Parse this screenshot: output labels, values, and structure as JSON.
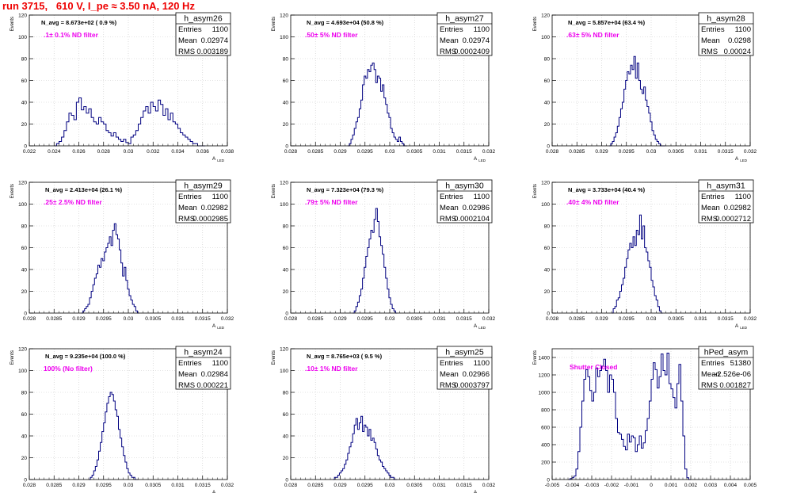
{
  "page_title": "run 3715,   610 V, I_pe ≈ 3.50 nA, 120 Hz",
  "colors": {
    "title": "#ee0000",
    "histogram_line": "#000080",
    "annotation": "#ee00ee",
    "grid": "#c8c8c8",
    "frame": "#000000"
  },
  "stats_labels": {
    "entries": "Entries",
    "mean": "Mean",
    "rms": "RMS"
  },
  "chart_data": [
    {
      "type": "histogram",
      "name": "h_asym26",
      "navg_text": "N_avg = 8.673e+02 ( 0.9 %)",
      "filter_text": ".1± 0.1% ND filter",
      "stats": {
        "entries": "1100",
        "mean": "0.02974",
        "rms": "0.003189"
      },
      "xlim": [
        0.022,
        0.038
      ],
      "ylim": [
        0,
        120
      ],
      "x_ticks": [
        0.022,
        0.024,
        0.026,
        0.028,
        0.03,
        0.032,
        0.034,
        0.036,
        0.038
      ],
      "x_tick_labels": [
        "0.022",
        "0.024",
        "0.026",
        "0.028",
        "0.03",
        "0.032",
        "0.034",
        "0.036",
        "0.038"
      ],
      "y_ticks": [
        0,
        20,
        40,
        60,
        80,
        100,
        120
      ],
      "ylabel": "Events",
      "xlabel": "A LED",
      "grid": true,
      "bins": {
        "x0": 0.024,
        "width": 0.0002,
        "counts": [
          0,
          2,
          4,
          8,
          14,
          22,
          30,
          28,
          24,
          40,
          44,
          33,
          36,
          30,
          34,
          26,
          22,
          20,
          26,
          22,
          20,
          14,
          12,
          9,
          12,
          8,
          6,
          4,
          6,
          3,
          2,
          8,
          10,
          14,
          20,
          26,
          32,
          36,
          30,
          40,
          36,
          32,
          42,
          38,
          28,
          34,
          24,
          30,
          22,
          20,
          16,
          12,
          10,
          8,
          6,
          4,
          2,
          2,
          0,
          0,
          0
        ]
      }
    },
    {
      "type": "histogram",
      "name": "h_asym27",
      "navg_text": "N_avg = 4.693e+04 (50.8 %)",
      "filter_text": ".50± 5% ND filter",
      "stats": {
        "entries": "1100",
        "mean": "0.02974",
        "rms": "0.0002409"
      },
      "xlim": [
        0.028,
        0.032
      ],
      "ylim": [
        0,
        120
      ],
      "x_ticks": [
        0.028,
        0.0285,
        0.029,
        0.0295,
        0.03,
        0.0305,
        0.031,
        0.0315,
        0.032
      ],
      "x_tick_labels": [
        "0.028",
        "0.0285",
        "0.029",
        "0.0295",
        "0.03",
        "0.0305",
        "0.031",
        "0.0315",
        "0.032"
      ],
      "y_ticks": [
        0,
        20,
        40,
        60,
        80,
        100,
        120
      ],
      "ylabel": "Events",
      "xlabel": "A LED",
      "grid": true,
      "bins": {
        "x0": 0.02915,
        "width": 3.333e-05,
        "counts": [
          0,
          2,
          6,
          10,
          16,
          22,
          26,
          34,
          42,
          56,
          64,
          62,
          70,
          68,
          74,
          76,
          70,
          58,
          64,
          62,
          50,
          56,
          44,
          38,
          30,
          26,
          16,
          12,
          8,
          6,
          4,
          8,
          4,
          2,
          0,
          0
        ]
      }
    },
    {
      "type": "histogram",
      "name": "h_asym28",
      "navg_text": "N_avg = 5.857e+04 (63.4 %)",
      "filter_text": ".63± 5% ND filter",
      "stats": {
        "entries": "1100",
        "mean": "0.0298",
        "rms": "0.00024"
      },
      "xlim": [
        0.028,
        0.032
      ],
      "ylim": [
        0,
        120
      ],
      "x_ticks": [
        0.028,
        0.0285,
        0.029,
        0.0295,
        0.03,
        0.0305,
        0.031,
        0.0315,
        0.032
      ],
      "x_tick_labels": [
        "0.028",
        "0.0285",
        "0.029",
        "0.0295",
        "0.03",
        "0.0305",
        "0.031",
        "0.0315",
        "0.032"
      ],
      "y_ticks": [
        0,
        20,
        40,
        60,
        80,
        100,
        120
      ],
      "ylabel": "Events",
      "xlabel": "A LED",
      "grid": true,
      "bins": {
        "x0": 0.02915,
        "width": 3.333e-05,
        "counts": [
          0,
          2,
          4,
          8,
          12,
          18,
          26,
          34,
          40,
          52,
          60,
          68,
          66,
          74,
          70,
          82,
          62,
          76,
          60,
          52,
          48,
          54,
          42,
          36,
          30,
          22,
          14,
          10,
          6,
          4,
          2,
          0,
          0,
          0
        ]
      }
    },
    {
      "type": "histogram",
      "name": "h_asym29",
      "navg_text": "N_avg = 2.413e+04 (26.1 %)",
      "filter_text": ".25± 2.5% ND filter",
      "stats": {
        "entries": "1100",
        "mean": "0.02982",
        "rms": "0.0002985"
      },
      "xlim": [
        0.028,
        0.032
      ],
      "ylim": [
        0,
        120
      ],
      "x_ticks": [
        0.028,
        0.0285,
        0.029,
        0.0295,
        0.03,
        0.0305,
        0.031,
        0.0315,
        0.032
      ],
      "x_tick_labels": [
        "0.028",
        "0.0285",
        "0.029",
        "0.0295",
        "0.03",
        "0.0305",
        "0.031",
        "0.0315",
        "0.032"
      ],
      "y_ticks": [
        0,
        20,
        40,
        60,
        80,
        100,
        120
      ],
      "ylabel": "Events",
      "xlabel": "A LED",
      "grid": true,
      "bins": {
        "x0": 0.02905,
        "width": 3.333e-05,
        "counts": [
          0,
          2,
          4,
          6,
          8,
          14,
          20,
          26,
          32,
          36,
          44,
          42,
          50,
          48,
          56,
          60,
          64,
          70,
          62,
          76,
          82,
          72,
          68,
          58,
          46,
          34,
          42,
          30,
          22,
          16,
          12,
          8,
          6,
          2,
          0
        ]
      }
    },
    {
      "type": "histogram",
      "name": "h_asym30",
      "navg_text": "N_avg = 7.323e+04 (79.3 %)",
      "filter_text": ".79± 5% ND filter",
      "stats": {
        "entries": "1100",
        "mean": "0.02986",
        "rms": "0.0002104"
      },
      "xlim": [
        0.028,
        0.032
      ],
      "ylim": [
        0,
        120
      ],
      "x_ticks": [
        0.028,
        0.0285,
        0.029,
        0.0295,
        0.03,
        0.0305,
        0.031,
        0.0315,
        0.032
      ],
      "x_tick_labels": [
        "0.028",
        "0.0285",
        "0.029",
        "0.0295",
        "0.03",
        "0.0305",
        "0.031",
        "0.0315",
        "0.032"
      ],
      "y_ticks": [
        0,
        20,
        40,
        60,
        80,
        100,
        120
      ],
      "ylabel": "Events",
      "xlabel": "A LED",
      "grid": true,
      "bins": {
        "x0": 0.02925,
        "width": 3.333e-05,
        "counts": [
          0,
          2,
          6,
          10,
          16,
          22,
          32,
          42,
          52,
          60,
          68,
          76,
          74,
          86,
          96,
          84,
          70,
          62,
          54,
          42,
          32,
          22,
          14,
          8,
          4,
          2,
          0
        ]
      }
    },
    {
      "type": "histogram",
      "name": "h_asym31",
      "navg_text": "N_avg = 3.733e+04 (40.4 %)",
      "filter_text": ".40± 4% ND filter",
      "stats": {
        "entries": "1100",
        "mean": "0.02982",
        "rms": "0.0002712"
      },
      "xlim": [
        0.028,
        0.032
      ],
      "ylim": [
        0,
        120
      ],
      "x_ticks": [
        0.028,
        0.0285,
        0.029,
        0.0295,
        0.03,
        0.0305,
        0.031,
        0.0315,
        0.032
      ],
      "x_tick_labels": [
        "0.028",
        "0.0285",
        "0.029",
        "0.0295",
        "0.03",
        "0.0305",
        "0.031",
        "0.0315",
        "0.032"
      ],
      "y_ticks": [
        0,
        20,
        40,
        60,
        80,
        100,
        120
      ],
      "ylabel": "Events",
      "xlabel": "A LED",
      "grid": true,
      "bins": {
        "x0": 0.0292,
        "width": 3.333e-05,
        "counts": [
          0,
          4,
          6,
          12,
          14,
          20,
          26,
          32,
          42,
          50,
          58,
          64,
          60,
          70,
          62,
          76,
          72,
          90,
          68,
          80,
          60,
          56,
          48,
          42,
          30,
          24,
          16,
          12,
          6,
          2,
          0
        ]
      }
    },
    {
      "type": "histogram",
      "name": "h_asym24",
      "navg_text": "N_avg = 9.235e+04 (100.0 %)",
      "filter_text": "100% (No filter)",
      "stats": {
        "entries": "1100",
        "mean": "0.02984",
        "rms": "0.000221"
      },
      "xlim": [
        0.028,
        0.032
      ],
      "ylim": [
        0,
        120
      ],
      "x_ticks": [
        0.028,
        0.0285,
        0.029,
        0.0295,
        0.03,
        0.0305,
        0.031,
        0.0315,
        0.032
      ],
      "x_tick_labels": [
        "0.028",
        "0.0285",
        "0.029",
        "0.0295",
        "0.03",
        "0.0305",
        "0.031",
        "0.0315",
        "0.032"
      ],
      "y_ticks": [
        0,
        20,
        40,
        60,
        80,
        100,
        120
      ],
      "ylabel": "Events",
      "xlabel": "A LED",
      "grid": true,
      "bins": {
        "x0": 0.0292,
        "width": 3.333e-05,
        "counts": [
          0,
          2,
          4,
          8,
          12,
          18,
          26,
          34,
          44,
          52,
          62,
          70,
          76,
          80,
          78,
          72,
          64,
          58,
          46,
          38,
          30,
          22,
          16,
          10,
          6,
          4,
          2,
          2,
          0,
          0
        ]
      }
    },
    {
      "type": "histogram",
      "name": "h_asym25",
      "navg_text": "N_avg = 8.765e+03 ( 9.5 %)",
      "filter_text": ".10± 1% ND filter",
      "stats": {
        "entries": "1100",
        "mean": "0.02966",
        "rms": "0.0003797"
      },
      "xlim": [
        0.028,
        0.032
      ],
      "ylim": [
        0,
        120
      ],
      "x_ticks": [
        0.028,
        0.0285,
        0.029,
        0.0295,
        0.03,
        0.0305,
        0.031,
        0.0315,
        0.032
      ],
      "x_tick_labels": [
        "0.028",
        "0.0285",
        "0.029",
        "0.0295",
        "0.03",
        "0.0305",
        "0.031",
        "0.0315",
        "0.032"
      ],
      "y_ticks": [
        0,
        20,
        40,
        60,
        80,
        100,
        120
      ],
      "ylabel": "Events",
      "xlabel": "A LED",
      "grid": true,
      "bins": {
        "x0": 0.02885,
        "width": 3.333e-05,
        "counts": [
          0,
          2,
          2,
          4,
          6,
          8,
          10,
          14,
          18,
          24,
          30,
          34,
          42,
          50,
          56,
          46,
          52,
          58,
          44,
          50,
          48,
          40,
          46,
          36,
          38,
          34,
          28,
          22,
          18,
          16,
          12,
          10,
          8,
          6,
          4,
          2,
          2,
          0,
          0
        ]
      }
    },
    {
      "type": "histogram",
      "name": "hPed_asym",
      "navg_text": "",
      "filter_text": "Shutter Closed",
      "stats": {
        "entries": "51380",
        "mean": "-2.526e-06",
        "rms": "0.001827"
      },
      "xlim": [
        -0.005,
        0.005
      ],
      "ylim": [
        0,
        1500
      ],
      "x_ticks": [
        -0.005,
        -0.004,
        -0.003,
        -0.002,
        -0.001,
        0,
        0.001,
        0.002,
        0.003,
        0.004,
        0.005
      ],
      "x_tick_labels": [
        "-0.005",
        "-0.004",
        "-0.003",
        "-0.002",
        "-0.001",
        "0",
        "0.001",
        "0.002",
        "0.003",
        "0.004",
        "0.005"
      ],
      "y_ticks": [
        0,
        200,
        400,
        600,
        800,
        1000,
        1200,
        1400
      ],
      "ylabel": "Events",
      "xlabel": "",
      "grid": true,
      "bins": {
        "x0": -0.0042,
        "width": 0.0001,
        "counts": [
          0,
          10,
          20,
          40,
          120,
          320,
          600,
          900,
          1150,
          1260,
          1180,
          1020,
          900,
          1000,
          1280,
          1180,
          1250,
          1300,
          1380,
          1250,
          1000,
          1200,
          1150,
          1000,
          700,
          540,
          520,
          460,
          380,
          340,
          520,
          430,
          500,
          480,
          320,
          400,
          500,
          360,
          420,
          560,
          700,
          900,
          1150,
          1340,
          1260,
          1050,
          1180,
          1440,
          1250,
          1200,
          1450,
          1100,
          1040,
          940,
          820,
          1100,
          1320,
          900,
          500,
          120,
          20,
          0
        ]
      }
    }
  ]
}
